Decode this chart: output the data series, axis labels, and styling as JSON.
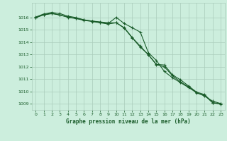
{
  "title": "Graphe pression niveau de la mer (hPa)",
  "bg_color": "#cceedd",
  "grid_color_major": "#aaccbb",
  "grid_color_minor": "#bbddcc",
  "line_color": "#1a5c2a",
  "ylim": [
    1008.5,
    1017.2
  ],
  "yticks": [
    1009,
    1010,
    1011,
    1012,
    1013,
    1014,
    1015,
    1016
  ],
  "xlim": [
    -0.5,
    23.5
  ],
  "xticks": [
    0,
    1,
    2,
    3,
    4,
    5,
    6,
    7,
    8,
    9,
    10,
    11,
    12,
    13,
    14,
    15,
    16,
    17,
    18,
    19,
    20,
    21,
    22,
    23
  ],
  "series1": [
    1016.0,
    1016.25,
    1016.35,
    1016.2,
    1016.05,
    1015.95,
    1015.8,
    1015.72,
    1015.65,
    1015.58,
    1015.58,
    1015.15,
    1014.35,
    1013.6,
    1013.0,
    1012.2,
    1012.15,
    1011.35,
    1010.95,
    1010.45,
    1009.95,
    1009.75,
    1009.1,
    1009.0
  ],
  "series2": [
    1016.05,
    1016.3,
    1016.42,
    1016.32,
    1016.12,
    1016.0,
    1015.82,
    1015.72,
    1015.62,
    1015.52,
    1016.02,
    1015.52,
    1015.18,
    1014.82,
    1013.15,
    1012.52,
    1011.62,
    1011.12,
    1010.72,
    1010.32,
    1009.92,
    1009.62,
    1009.22,
    1009.02
  ],
  "series3": [
    1016.0,
    1016.22,
    1016.32,
    1016.22,
    1016.02,
    1015.92,
    1015.78,
    1015.68,
    1015.58,
    1015.48,
    1015.58,
    1015.18,
    1014.38,
    1013.68,
    1012.98,
    1012.18,
    1012.0,
    1011.28,
    1010.78,
    1010.38,
    1009.88,
    1009.68,
    1009.08,
    1008.98
  ]
}
